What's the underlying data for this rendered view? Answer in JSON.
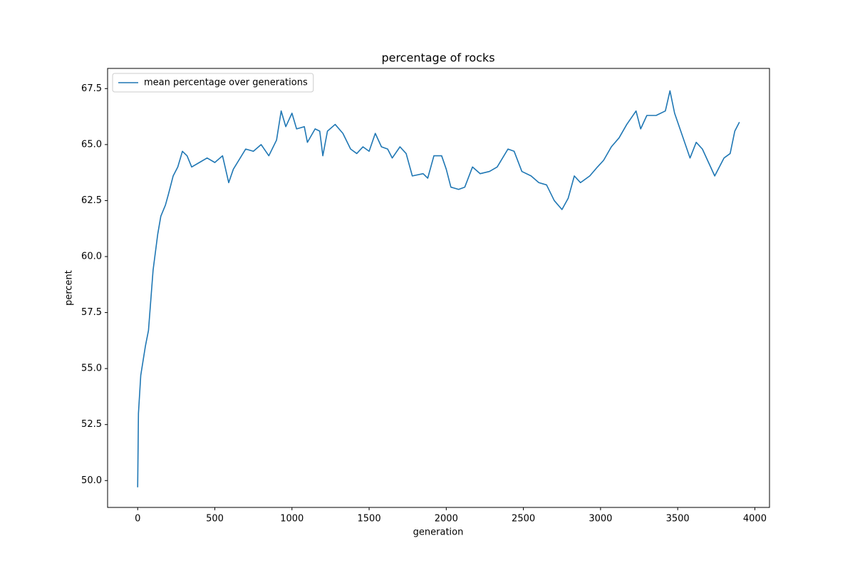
{
  "chart_data": {
    "type": "line",
    "title": "percentage of rocks",
    "x_label": "generation",
    "y_label": "percent",
    "x": [
      0,
      5,
      20,
      50,
      70,
      100,
      130,
      150,
      180,
      200,
      230,
      260,
      290,
      320,
      350,
      400,
      450,
      500,
      550,
      590,
      620,
      700,
      750,
      800,
      850,
      900,
      930,
      960,
      1000,
      1030,
      1080,
      1100,
      1150,
      1180,
      1200,
      1230,
      1280,
      1330,
      1380,
      1420,
      1460,
      1500,
      1540,
      1580,
      1620,
      1650,
      1700,
      1740,
      1780,
      1850,
      1880,
      1920,
      1970,
      2000,
      2030,
      2080,
      2120,
      2170,
      2220,
      2280,
      2330,
      2400,
      2440,
      2490,
      2550,
      2600,
      2650,
      2700,
      2750,
      2790,
      2830,
      2870,
      2930,
      2980,
      3020,
      3070,
      3120,
      3170,
      3230,
      3260,
      3300,
      3360,
      3420,
      3450,
      3480,
      3520,
      3580,
      3620,
      3660,
      3700,
      3740,
      3800,
      3840,
      3870,
      3900
    ],
    "series": [
      {
        "name": "mean percentage over generations",
        "color": "#1f77b4",
        "values": [
          49.7,
          53,
          54.7,
          56,
          56.7,
          59.4,
          61,
          61.8,
          62.3,
          62.8,
          63.6,
          64,
          64.7,
          64.5,
          64,
          64.2,
          64.4,
          64.2,
          64.5,
          63.3,
          63.9,
          64.8,
          64.7,
          65,
          64.5,
          65.2,
          66.5,
          65.8,
          66.4,
          65.7,
          65.8,
          65.1,
          65.7,
          65.6,
          64.5,
          65.6,
          65.9,
          65.5,
          64.8,
          64.6,
          64.9,
          64.7,
          65.5,
          64.9,
          64.8,
          64.4,
          64.9,
          64.6,
          63.6,
          63.7,
          63.5,
          64.5,
          64.5,
          63.9,
          63.1,
          63.0,
          63.1,
          64.0,
          63.7,
          63.8,
          64.0,
          64.8,
          64.7,
          63.8,
          63.6,
          63.3,
          63.2,
          62.5,
          62.1,
          62.6,
          63.6,
          63.3,
          63.6,
          64.0,
          64.3,
          64.9,
          65.3,
          65.9,
          66.5,
          65.7,
          66.3,
          66.3,
          66.5,
          67.4,
          66.4,
          65.6,
          64.4,
          65.1,
          64.8,
          64.2,
          63.6,
          64.4,
          64.6,
          65.6,
          66.0
        ]
      }
    ],
    "xlim": [
      -195,
      4095
    ],
    "ylim": [
      48.8,
      68.4
    ],
    "xticks": [
      0,
      500,
      1000,
      1500,
      2000,
      2500,
      3000,
      3500,
      4000
    ],
    "yticks": [
      {
        "value": 50,
        "label": "50.0"
      },
      52.5,
      {
        "value": 55,
        "label": "55.0"
      },
      57.5,
      {
        "value": 60,
        "label": "60.0"
      },
      62.5,
      {
        "value": 65,
        "label": "65.0"
      },
      67.5
    ],
    "grid": false,
    "legend": "upper-left"
  }
}
